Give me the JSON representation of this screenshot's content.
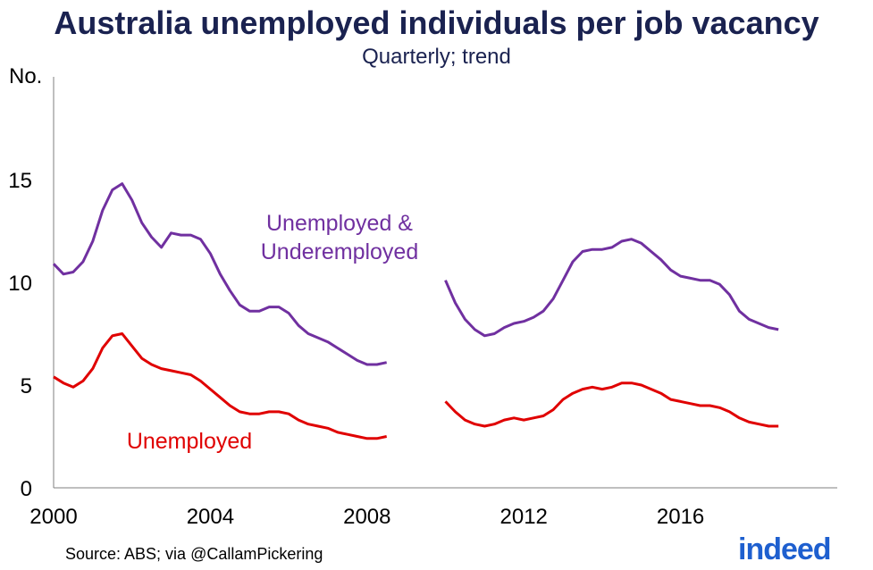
{
  "chart_data": {
    "type": "line",
    "title": "Australia unemployed individuals per job vacancy",
    "subtitle": "Quarterly; trend",
    "ylabel": "No.",
    "ylim": [
      0,
      20
    ],
    "xlim": [
      2000,
      2020
    ],
    "yticks": [
      0,
      5,
      10,
      15
    ],
    "xticks": [
      2000,
      2004,
      2008,
      2012,
      2016
    ],
    "xtick_labels": [
      "2000",
      "2004",
      "2008",
      "2012",
      "2016"
    ],
    "series": [
      {
        "name": "Unemployed & Underemployed",
        "label_lines": [
          "Unemployed &",
          "Underemployed"
        ],
        "color": "#7030a0",
        "segments": [
          {
            "x": [
              2000,
              2000.25,
              2000.5,
              2000.75,
              2001,
              2001.25,
              2001.5,
              2001.75,
              2002,
              2002.25,
              2002.5,
              2002.75,
              2003,
              2003.25,
              2003.5,
              2003.75,
              2004,
              2004.25,
              2004.5,
              2004.75,
              2005,
              2005.25,
              2005.5,
              2005.75,
              2006,
              2006.25,
              2006.5,
              2006.75,
              2007,
              2007.25,
              2007.5,
              2007.75,
              2008,
              2008.25,
              2008.5
            ],
            "y": [
              10.9,
              10.4,
              10.5,
              11.0,
              12.0,
              13.5,
              14.5,
              14.8,
              14.0,
              12.9,
              12.2,
              11.7,
              12.4,
              12.3,
              12.3,
              12.1,
              11.4,
              10.4,
              9.6,
              8.9,
              8.6,
              8.6,
              8.8,
              8.8,
              8.5,
              7.9,
              7.5,
              7.3,
              7.1,
              6.8,
              6.5,
              6.2,
              6.0,
              6.0,
              6.1
            ]
          },
          {
            "x": [
              2010,
              2010.25,
              2010.5,
              2010.75,
              2011,
              2011.25,
              2011.5,
              2011.75,
              2012,
              2012.25,
              2012.5,
              2012.75,
              2013,
              2013.25,
              2013.5,
              2013.75,
              2014,
              2014.25,
              2014.5,
              2014.75,
              2015,
              2015.25,
              2015.5,
              2015.75,
              2016,
              2016.25,
              2016.5,
              2016.75,
              2017,
              2017.25,
              2017.5,
              2017.75,
              2018,
              2018.25,
              2018.5
            ],
            "y": [
              10.1,
              9.0,
              8.2,
              7.7,
              7.4,
              7.5,
              7.8,
              8.0,
              8.1,
              8.3,
              8.6,
              9.2,
              10.1,
              11.0,
              11.5,
              11.6,
              11.6,
              11.7,
              12.0,
              12.1,
              11.9,
              11.5,
              11.1,
              10.6,
              10.3,
              10.2,
              10.1,
              10.1,
              9.9,
              9.4,
              8.6,
              8.2,
              8.0,
              7.8,
              7.7
            ]
          }
        ]
      },
      {
        "name": "Unemployed",
        "label_lines": [
          "Unemployed"
        ],
        "color": "#e00000",
        "segments": [
          {
            "x": [
              2000,
              2000.25,
              2000.5,
              2000.75,
              2001,
              2001.25,
              2001.5,
              2001.75,
              2002,
              2002.25,
              2002.5,
              2002.75,
              2003,
              2003.25,
              2003.5,
              2003.75,
              2004,
              2004.25,
              2004.5,
              2004.75,
              2005,
              2005.25,
              2005.5,
              2005.75,
              2006,
              2006.25,
              2006.5,
              2006.75,
              2007,
              2007.25,
              2007.5,
              2007.75,
              2008,
              2008.25,
              2008.5
            ],
            "y": [
              5.4,
              5.1,
              4.9,
              5.2,
              5.8,
              6.8,
              7.4,
              7.5,
              6.9,
              6.3,
              6.0,
              5.8,
              5.7,
              5.6,
              5.5,
              5.2,
              4.8,
              4.4,
              4.0,
              3.7,
              3.6,
              3.6,
              3.7,
              3.7,
              3.6,
              3.3,
              3.1,
              3.0,
              2.9,
              2.7,
              2.6,
              2.5,
              2.4,
              2.4,
              2.5
            ]
          },
          {
            "x": [
              2010,
              2010.25,
              2010.5,
              2010.75,
              2011,
              2011.25,
              2011.5,
              2011.75,
              2012,
              2012.25,
              2012.5,
              2012.75,
              2013,
              2013.25,
              2013.5,
              2013.75,
              2014,
              2014.25,
              2014.5,
              2014.75,
              2015,
              2015.25,
              2015.5,
              2015.75,
              2016,
              2016.25,
              2016.5,
              2016.75,
              2017,
              2017.25,
              2017.5,
              2017.75,
              2018,
              2018.25,
              2018.5
            ],
            "y": [
              4.2,
              3.7,
              3.3,
              3.1,
              3.0,
              3.1,
              3.3,
              3.4,
              3.3,
              3.4,
              3.5,
              3.8,
              4.3,
              4.6,
              4.8,
              4.9,
              4.8,
              4.9,
              5.1,
              5.1,
              5.0,
              4.8,
              4.6,
              4.3,
              4.2,
              4.1,
              4.0,
              4.0,
              3.9,
              3.7,
              3.4,
              3.2,
              3.1,
              3.0,
              3.0
            ]
          }
        ]
      }
    ],
    "source": "Source: ABS; via @CallamPickering",
    "logo_text": "indeed"
  }
}
